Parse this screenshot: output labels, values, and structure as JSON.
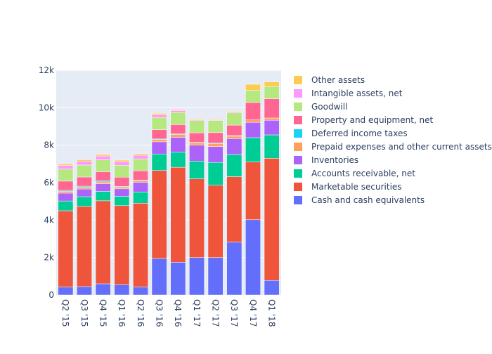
{
  "chart_data": {
    "type": "bar",
    "barmode": "stack",
    "title": "",
    "xlabel": "",
    "ylabel": "",
    "ylim": [
      0,
      12000
    ],
    "yticks": [
      0,
      2000,
      4000,
      6000,
      8000,
      10000,
      12000
    ],
    "ytick_labels": [
      "0",
      "2k",
      "4k",
      "6k",
      "8k",
      "10k",
      "12k"
    ],
    "grid": true,
    "legend_position": "right",
    "categories": [
      "Q2 '15",
      "Q3 '15",
      "Q4 '15",
      "Q1 '16",
      "Q2 '16",
      "Q3 '16",
      "Q4 '16",
      "Q1 '17",
      "Q2 '17",
      "Q3 '17",
      "Q4 '17",
      "Q1 '18"
    ],
    "series": [
      {
        "name": "Cash and cash equivalents",
        "color": "#636efa",
        "values": [
          420,
          450,
          600,
          550,
          420,
          1950,
          1750,
          2000,
          2000,
          2820,
          4020,
          780
        ]
      },
      {
        "name": "Marketable securities",
        "color": "#EF553B",
        "values": [
          4080,
          4280,
          4430,
          4220,
          4480,
          4700,
          5070,
          4200,
          3860,
          3500,
          3080,
          6520
        ]
      },
      {
        "name": "Accounts receivable, net",
        "color": "#00cc96",
        "values": [
          520,
          520,
          500,
          500,
          600,
          880,
          800,
          950,
          1220,
          1180,
          1300,
          1250
        ]
      },
      {
        "name": "Inventories",
        "color": "#ab63fa",
        "values": [
          420,
          410,
          410,
          400,
          510,
          650,
          800,
          850,
          850,
          850,
          820,
          780
        ]
      },
      {
        "name": "Prepaid expenses and other current assets",
        "color": "#FFA15A",
        "values": [
          100,
          100,
          100,
          100,
          100,
          120,
          150,
          120,
          150,
          130,
          130,
          120
        ]
      },
      {
        "name": "Deferred income taxes",
        "color": "#19d3f3",
        "values": [
          50,
          50,
          50,
          30,
          30,
          30,
          30,
          30,
          30,
          30,
          0,
          0
        ]
      },
      {
        "name": "Property and equipment, net",
        "color": "#FF6692",
        "values": [
          490,
          490,
          490,
          490,
          490,
          500,
          500,
          510,
          560,
          560,
          930,
          1030
        ]
      },
      {
        "name": "Goodwill",
        "color": "#B6E880",
        "values": [
          640,
          640,
          640,
          640,
          640,
          650,
          650,
          650,
          650,
          650,
          650,
          650
        ]
      },
      {
        "name": "Intangible assets, net",
        "color": "#FF97FF",
        "values": [
          200,
          200,
          200,
          190,
          190,
          140,
          100,
          40,
          40,
          40,
          0,
          0
        ]
      },
      {
        "name": "Other assets",
        "color": "#FECB52",
        "values": [
          80,
          80,
          80,
          80,
          80,
          80,
          50,
          50,
          40,
          50,
          320,
          250
        ]
      }
    ]
  }
}
